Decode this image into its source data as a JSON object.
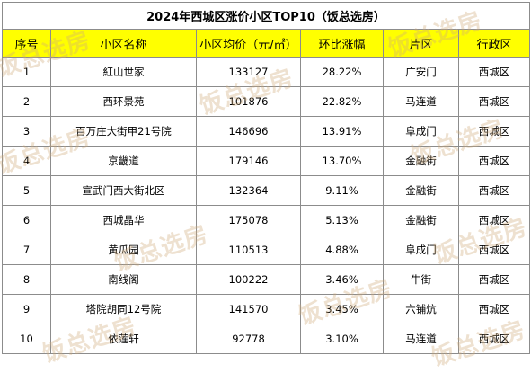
{
  "table": {
    "title": "2024年西城区涨价小区TOP10（饭总选房）",
    "headers": [
      "序号",
      "小区名称",
      "小区均价（元/㎡）",
      "环比涨幅",
      "片区",
      "行政区"
    ],
    "rows": [
      {
        "no": "1",
        "name": "紅山世家",
        "price": "133127",
        "change": "28.22%",
        "area": "广安门",
        "district": "西城区"
      },
      {
        "no": "2",
        "name": "西环景苑",
        "price": "101876",
        "change": "22.82%",
        "area": "马连道",
        "district": "西城区"
      },
      {
        "no": "3",
        "name": "百万庄大街甲21号院",
        "price": "146696",
        "change": "13.91%",
        "area": "阜成门",
        "district": "西城区"
      },
      {
        "no": "4",
        "name": "京畿道",
        "price": "179146",
        "change": "13.70%",
        "area": "金融街",
        "district": "西城区"
      },
      {
        "no": "5",
        "name": "宣武门西大街北区",
        "price": "132364",
        "change": "9.11%",
        "area": "金融街",
        "district": "西城区"
      },
      {
        "no": "6",
        "name": "西城晶华",
        "price": "175078",
        "change": "5.13%",
        "area": "金融街",
        "district": "西城区"
      },
      {
        "no": "7",
        "name": "黄瓜园",
        "price": "110513",
        "change": "4.88%",
        "area": "阜成门",
        "district": "西城区"
      },
      {
        "no": "8",
        "name": "南线阁",
        "price": "100222",
        "change": "3.46%",
        "area": "牛街",
        "district": "西城区"
      },
      {
        "no": "9",
        "name": "塔院胡同12号院",
        "price": "141570",
        "change": "3.45%",
        "area": "六铺炕",
        "district": "西城区"
      },
      {
        "no": "10",
        "name": "依莲轩",
        "price": "92778",
        "change": "3.10%",
        "area": "马连道",
        "district": "西城区"
      }
    ]
  },
  "watermark": {
    "text": "饭总选房"
  },
  "colors": {
    "header_bg": "#ffff00",
    "border": "#8c8c8c",
    "watermark": "#cdaa78"
  }
}
